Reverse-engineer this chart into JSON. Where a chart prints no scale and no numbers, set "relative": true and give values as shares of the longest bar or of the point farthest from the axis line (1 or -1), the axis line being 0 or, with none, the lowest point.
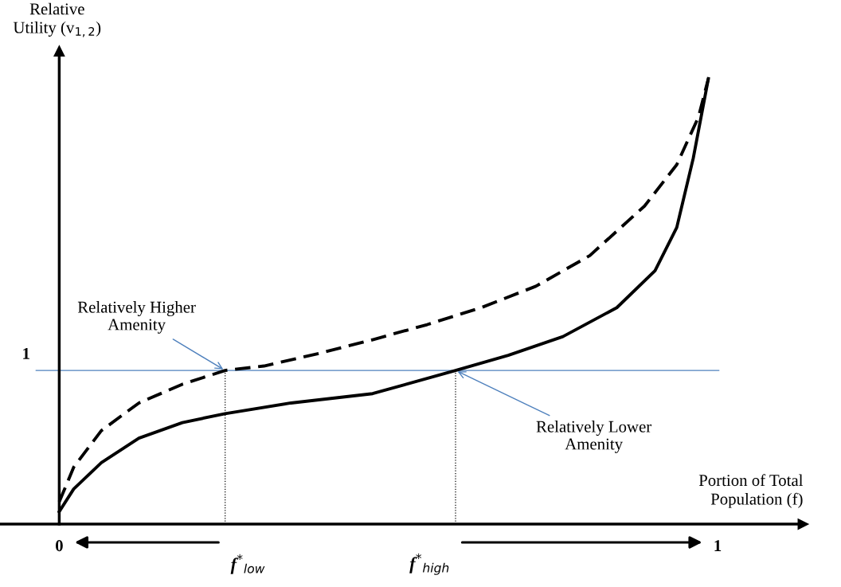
{
  "chart_data": {
    "type": "line",
    "relative": true,
    "xlabel": "Portion of Total\nPopulation (f)",
    "ylabel": "Relative\nUtility (v$_{1,2}$)",
    "xlim": [
      -0.09,
      1.13
    ],
    "xticks": [
      0,
      1
    ],
    "marker": "none",
    "series": [
      {
        "color": "#000000",
        "line_style": "dashed",
        "x": [
          0,
          0.022,
          0.064,
          0.121,
          0.187,
          0.252,
          0.311,
          0.394,
          0.476,
          0.559,
          0.641,
          0.724,
          0.806,
          0.889,
          0.938,
          0.971,
          0.986
        ],
        "values": [
          0.05,
          0.128,
          0.21,
          0.272,
          0.314,
          0.345,
          0.355,
          0.383,
          0.414,
          0.448,
          0.486,
          0.534,
          0.603,
          0.714,
          0.807,
          0.914,
          1
        ]
      },
      {
        "color": "#000000",
        "line_style": "solid",
        "x": [
          0,
          0.022,
          0.064,
          0.121,
          0.187,
          0.252,
          0.352,
          0.476,
          0.602,
          0.682,
          0.765,
          0.847,
          0.905,
          0.938,
          0.963,
          0.986
        ],
        "values": [
          0.028,
          0.079,
          0.138,
          0.193,
          0.228,
          0.248,
          0.272,
          0.293,
          0.345,
          0.379,
          0.421,
          0.486,
          0.569,
          0.666,
          0.821,
          1
        ]
      }
    ],
    "ref_lines": [
      {
        "axis": "y",
        "value": 0.345,
        "color": "#4f81bd",
        "line_style": "solid"
      },
      {
        "axis": "x",
        "value": 0.252,
        "label": "f$^{*}$$_{low}$",
        "color": "#000000",
        "line_style": "dotted"
      },
      {
        "axis": "x",
        "value": 0.602,
        "label": "f$^{*}$$_{high}$",
        "color": "#000000",
        "line_style": "dotted"
      }
    ],
    "annotations": [
      {
        "text": "Relatively Higher\nAmenity",
        "x": 0.252,
        "y": 0.345
      },
      {
        "text": "Relatively Lower\nAmenity",
        "x": 0.602,
        "y": 0.345
      },
      {
        "text": "1",
        "x": 0,
        "y": 0.345
      }
    ]
  }
}
